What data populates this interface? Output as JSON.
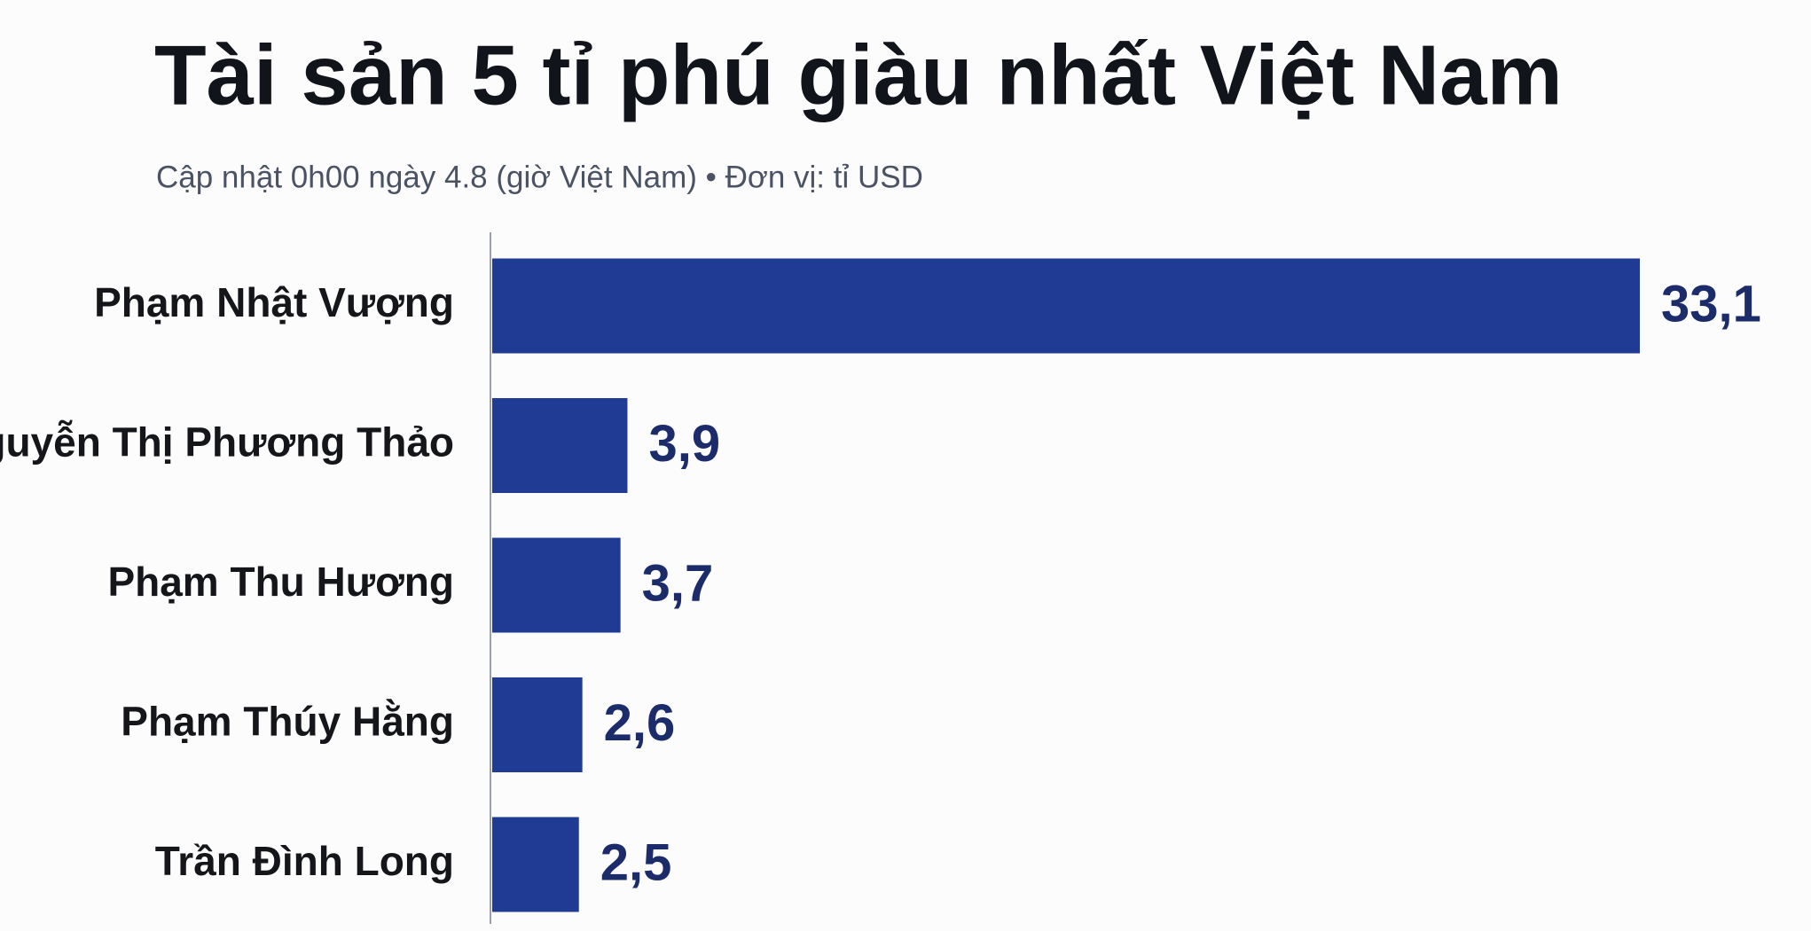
{
  "chart_data": {
    "type": "bar",
    "orientation": "horizontal",
    "title": "Tài sản 5 tỉ phú giàu nhất Việt Nam",
    "subtitle": "Cập nhật 0h00 ngày 4.8 (giờ Việt Nam) • Đơn vị: tỉ USD",
    "categories": [
      "Phạm Nhật Vượng",
      "Nguyễn Thị Phương Thảo",
      "Phạm Thu Hương",
      "Phạm Thúy Hằng",
      "Trần Đình Long"
    ],
    "values": [
      33.1,
      3.9,
      3.7,
      2.6,
      2.5
    ],
    "value_labels": [
      "33,1",
      "3,9",
      "3,7",
      "2,6",
      "2,5"
    ],
    "color": "#1f3b94"
  }
}
